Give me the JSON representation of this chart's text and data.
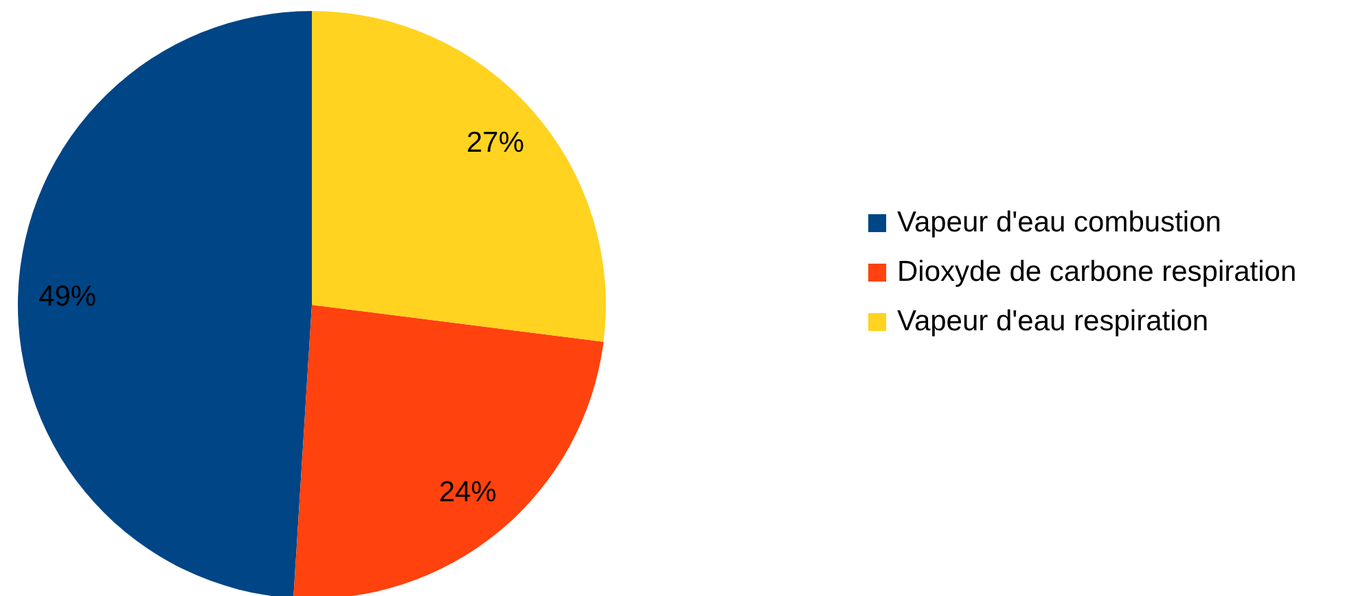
{
  "chart_data": {
    "type": "pie",
    "categories": [
      "Vapeur d'eau combustion",
      "Dioxyde de carbone respiration",
      "Vapeur d'eau respiration"
    ],
    "values": [
      49,
      24,
      27
    ],
    "colors": [
      "#004586",
      "#ff420e",
      "#ffd320"
    ],
    "value_labels": [
      "49%",
      "24%",
      "27%"
    ],
    "legend": "right"
  }
}
